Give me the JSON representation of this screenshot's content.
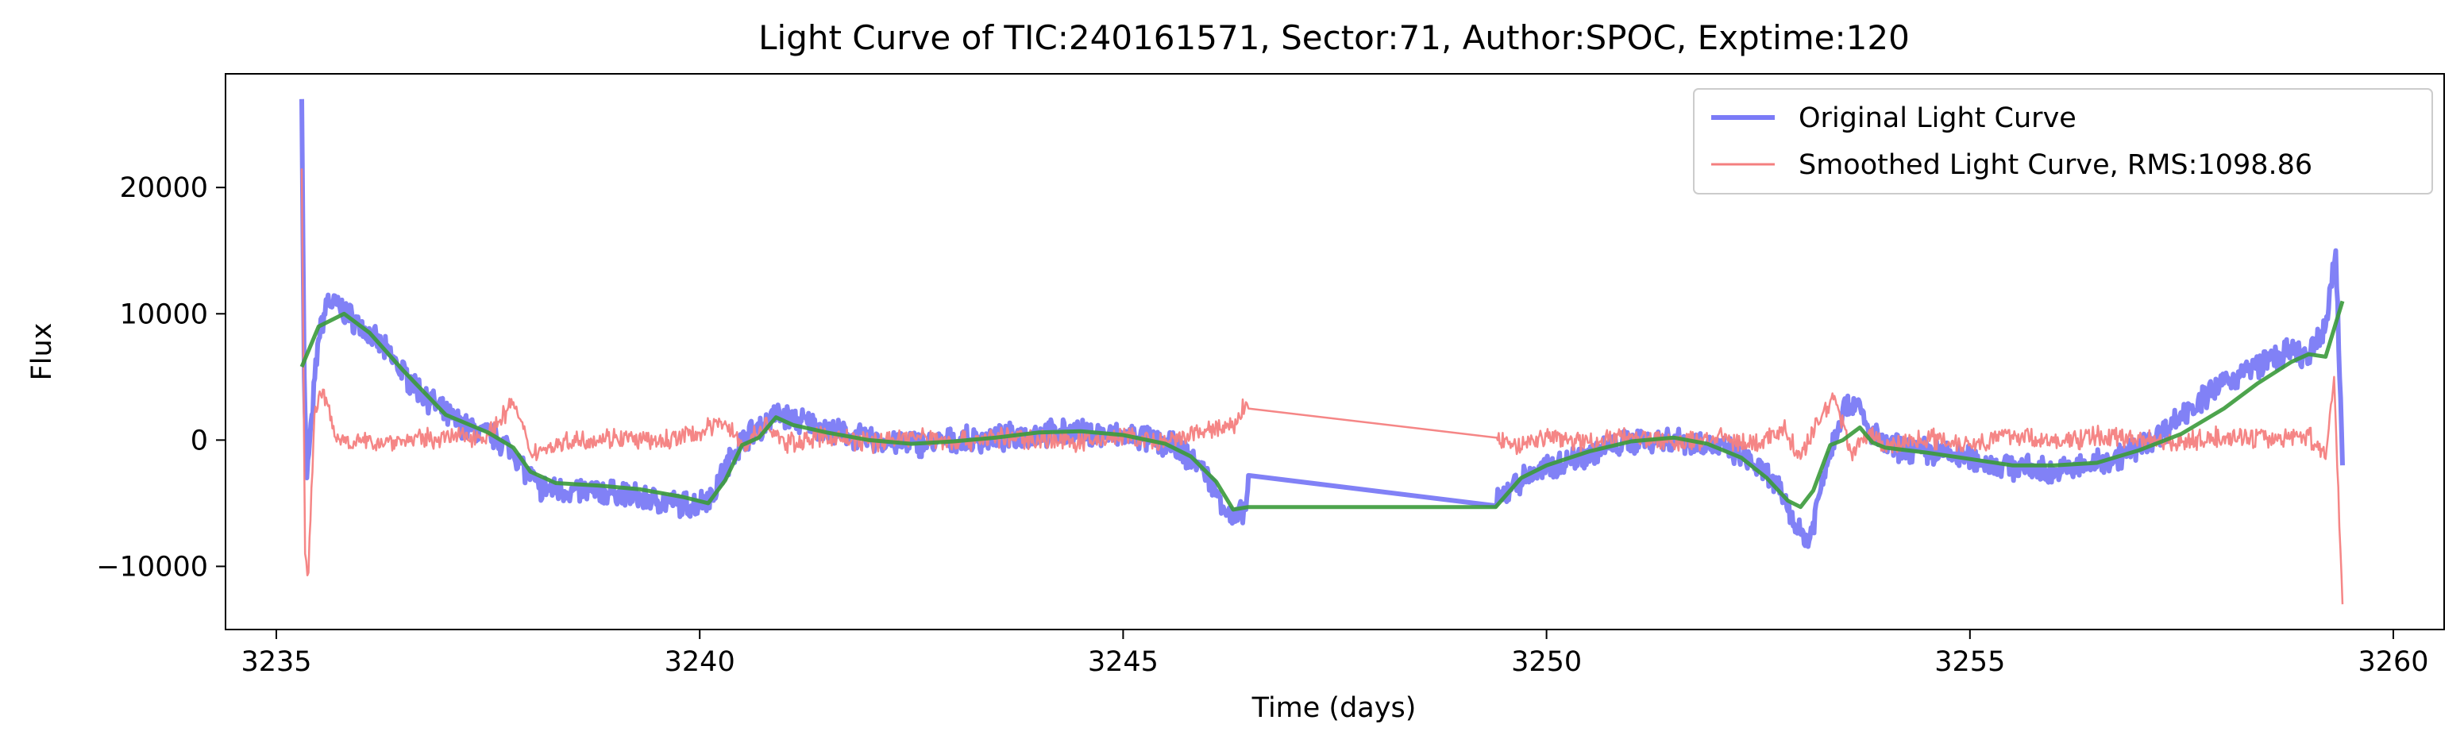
{
  "chart_data": {
    "type": "line",
    "title": "Light Curve of TIC:240161571, Sector:71, Author:SPOC, Exptime:120",
    "xlabel": "Time (days)",
    "ylabel": "Flux",
    "xlim": [
      3234.4,
      3260.6
    ],
    "ylim": [
      -15000,
      29000
    ],
    "xticks": [
      3235,
      3240,
      3245,
      3250,
      3255,
      3260
    ],
    "yticks": [
      -10000,
      0,
      10000,
      20000
    ],
    "ytick_labels": [
      "−10000",
      "0",
      "10000",
      "20000"
    ],
    "grid": false,
    "legend_position": "top-right",
    "legend": [
      {
        "label": "Original Light Curve",
        "color": "#7b7bf7"
      },
      {
        "label": "Smoothed Light Curve, RMS:1098.86",
        "color": "#f47f7f"
      }
    ],
    "series": [
      {
        "name": "Original Light Curve",
        "color": "#6b6bf5",
        "x": [
          3235.3,
          3235.33,
          3235.36,
          3235.42,
          3235.5,
          3235.6,
          3235.75,
          3236.0,
          3236.3,
          3236.6,
          3237.0,
          3237.3,
          3237.6,
          3237.8,
          3237.95,
          3238.1,
          3238.5,
          3239.0,
          3239.5,
          3239.9,
          3240.15,
          3240.4,
          3240.55,
          3240.75,
          3240.9,
          3241.2,
          3241.6,
          3242.0,
          3242.4,
          3242.8,
          3243.2,
          3243.6,
          3244.0,
          3244.4,
          3244.8,
          3245.2,
          3245.6,
          3245.9,
          3246.1,
          3246.3,
          3246.45,
          3246.48,
          3249.4,
          3249.6,
          3249.9,
          3250.3,
          3250.7,
          3251.1,
          3251.5,
          3251.9,
          3252.3,
          3252.6,
          3252.8,
          3252.95,
          3253.1,
          3253.3,
          3253.5,
          3253.65,
          3253.8,
          3254.0,
          3254.4,
          3254.8,
          3255.2,
          3255.6,
          3256.0,
          3256.4,
          3256.8,
          3257.2,
          3257.6,
          3258.0,
          3258.4,
          3258.8,
          3259.0,
          3259.2,
          3259.32,
          3259.4
        ],
        "y": [
          27000,
          5000,
          -3000,
          2000,
          8000,
          11000,
          10500,
          9000,
          7000,
          4500,
          2000,
          800,
          200,
          -1000,
          -2500,
          -3800,
          -4000,
          -4200,
          -4800,
          -5200,
          -4300,
          -1000,
          300,
          1200,
          2000,
          1500,
          600,
          0,
          -300,
          -200,
          0,
          200,
          500,
          600,
          400,
          200,
          -500,
          -2000,
          -4000,
          -6500,
          -5500,
          -2800,
          -5200,
          -3500,
          -2500,
          -1500,
          -600,
          0,
          100,
          -300,
          -1200,
          -2800,
          -4500,
          -7000,
          -8000,
          -2000,
          2500,
          3000,
          800,
          -500,
          -800,
          -1200,
          -1800,
          -2200,
          -2500,
          -2000,
          -1200,
          200,
          2500,
          4500,
          6000,
          7000,
          6500,
          9000,
          15000,
          -2000
        ]
      },
      {
        "name": "Smoothed Light Curve, RMS:1098.86",
        "color": "#f47f7f",
        "x": [
          3235.3,
          3235.34,
          3235.38,
          3235.45,
          3235.55,
          3235.7,
          3236.0,
          3236.5,
          3237.0,
          3237.5,
          3237.8,
          3238.0,
          3238.5,
          3239.0,
          3239.5,
          3240.0,
          3240.3,
          3240.5,
          3240.8,
          3241.0,
          3241.5,
          3242.0,
          3242.5,
          3243.0,
          3243.5,
          3244.0,
          3244.5,
          3245.0,
          3245.5,
          3246.0,
          3246.3,
          3246.45,
          3246.48,
          3249.4,
          3249.6,
          3250.0,
          3250.5,
          3251.0,
          3251.5,
          3252.0,
          3252.5,
          3252.8,
          3253.0,
          3253.2,
          3253.4,
          3253.6,
          3253.8,
          3254.0,
          3254.5,
          3255.0,
          3255.5,
          3256.0,
          3256.5,
          3257.0,
          3257.5,
          3258.0,
          3258.5,
          3259.0,
          3259.2,
          3259.3,
          3259.4
        ],
        "y": [
          21500,
          -9000,
          -10500,
          2000,
          4000,
          200,
          -200,
          0,
          200,
          400,
          3000,
          -1000,
          0,
          200,
          -200,
          600,
          1500,
          -500,
          1200,
          -300,
          300,
          -200,
          300,
          -100,
          200,
          100,
          -200,
          300,
          -300,
          800,
          1000,
          3000,
          2500,
          200,
          -500,
          300,
          -200,
          400,
          -300,
          200,
          -400,
          1000,
          -1500,
          1500,
          3500,
          -1000,
          500,
          -500,
          200,
          -300,
          400,
          -200,
          300,
          200,
          -200,
          300,
          100,
          400,
          -1500,
          5000,
          -13000
        ]
      },
      {
        "name": "",
        "color": "#3a9a3a",
        "x": [
          3235.3,
          3235.5,
          3235.8,
          3236.1,
          3236.5,
          3237.0,
          3237.5,
          3237.8,
          3238.0,
          3238.3,
          3238.8,
          3239.3,
          3239.8,
          3240.1,
          3240.3,
          3240.5,
          3240.7,
          3240.9,
          3241.1,
          3241.5,
          3242.0,
          3242.5,
          3243.0,
          3243.5,
          3244.0,
          3244.5,
          3245.0,
          3245.5,
          3245.8,
          3246.1,
          3246.3,
          3246.48,
          3249.4,
          3249.7,
          3250.0,
          3250.5,
          3251.0,
          3251.5,
          3251.9,
          3252.3,
          3252.6,
          3252.85,
          3253.0,
          3253.15,
          3253.35,
          3253.5,
          3253.7,
          3253.85,
          3254.0,
          3254.5,
          3255.0,
          3255.5,
          3256.0,
          3256.5,
          3257.0,
          3257.5,
          3258.0,
          3258.4,
          3258.8,
          3259.0,
          3259.2,
          3259.4
        ],
        "y": [
          5800,
          9000,
          10000,
          8500,
          5500,
          2000,
          600,
          -600,
          -2500,
          -3400,
          -3600,
          -3900,
          -4500,
          -5000,
          -3200,
          -400,
          200,
          1800,
          1200,
          600,
          0,
          -300,
          -100,
          200,
          600,
          700,
          400,
          -300,
          -1300,
          -3300,
          -5500,
          -5300,
          -5300,
          -3000,
          -2000,
          -900,
          -100,
          200,
          -300,
          -1400,
          -3000,
          -4800,
          -5300,
          -4000,
          -400,
          0,
          1000,
          -200,
          -600,
          -1000,
          -1500,
          -2000,
          -2000,
          -1800,
          -800,
          500,
          2500,
          4500,
          6200,
          6800,
          6600,
          11000
        ]
      }
    ]
  }
}
